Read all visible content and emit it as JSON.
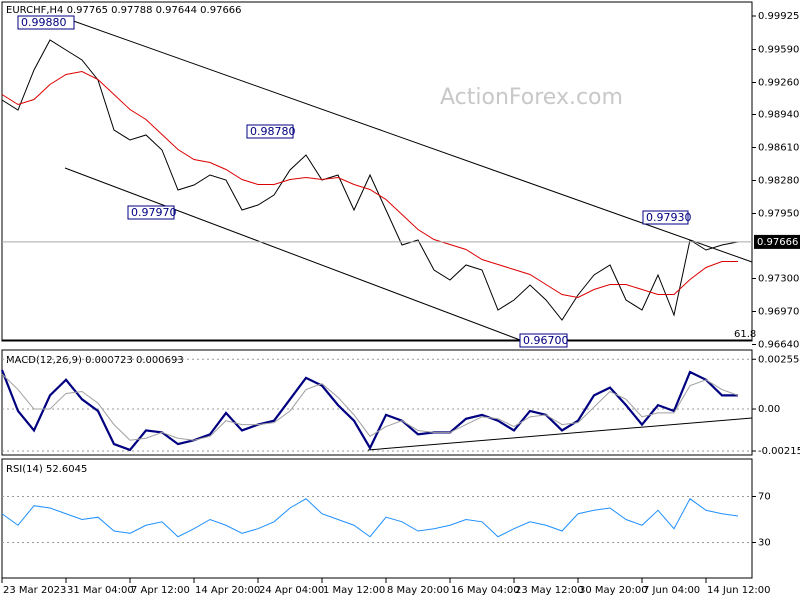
{
  "chart_data": [
    {
      "type": "line",
      "title": "EURCHF,H4 0.97765 0.97788 0.97644 0.97666",
      "watermark": "ActionForex.com",
      "categories": [
        "23 Mar 2023",
        null,
        null,
        null,
        "31 Mar 04:00",
        null,
        null,
        null,
        "7 Apr 12:00",
        null,
        null,
        null,
        "14 Apr 20:00",
        null,
        null,
        null,
        "24 Apr 04:00",
        null,
        null,
        null,
        "1 May 12:00",
        null,
        null,
        null,
        "8 May 20:00",
        null,
        null,
        null,
        "16 May 04:00",
        null,
        null,
        null,
        "23 May 12:00",
        null,
        null,
        null,
        "30 May 20:00",
        null,
        null,
        null,
        "7 Jun 04:00",
        null,
        null,
        null,
        "14 Jun 12:00",
        null,
        null
      ],
      "series": [
        {
          "color": "#000000",
          "values": [
            0.99085,
            0.98985,
            0.99385,
            0.99685,
            0.99585,
            0.99485,
            0.99285,
            0.98785,
            0.98685,
            0.98735,
            0.98585,
            0.98185,
            0.98235,
            0.98335,
            0.98285,
            0.97985,
            0.98035,
            0.98135,
            0.98385,
            0.98535,
            0.98285,
            0.98335,
            0.97985,
            0.98335,
            0.97985,
            0.97635,
            0.97685,
            0.97385,
            0.97285,
            0.97435,
            0.97385,
            0.96985,
            0.97085,
            0.97235,
            0.97085,
            0.96885,
            0.97135,
            0.97335,
            0.97435,
            0.97085,
            0.96985,
            0.97335,
            0.96935,
            0.97685,
            0.97585,
            0.97635,
            0.97666
          ]
        },
        {
          "color": "#dd0000",
          "values": [
            0.9914,
            0.9904,
            0.9909,
            0.9924,
            0.9934,
            0.9937,
            0.9929,
            0.9914,
            0.9899,
            0.9889,
            0.9874,
            0.9859,
            0.9849,
            0.9846,
            0.9839,
            0.9829,
            0.9824,
            0.9824,
            0.9829,
            0.9831,
            0.9829,
            0.9831,
            0.9824,
            0.9819,
            0.9809,
            0.9794,
            0.9779,
            0.9769,
            0.9764,
            0.9759,
            0.9749,
            0.9744,
            0.9739,
            0.9734,
            0.9724,
            0.9714,
            0.9711,
            0.9719,
            0.9724,
            0.9724,
            0.9719,
            0.9714,
            0.9714,
            0.9729,
            0.9741,
            0.9747,
            0.9747
          ]
        }
      ],
      "ylim": [
        0.96675,
        1.00055
      ],
      "yticks": [
        0.99925,
        {
          "value": 0.9959,
          "label": "0.99590"
        },
        {
          "value": 0.9926,
          "label": "0.99260"
        },
        {
          "value": 0.9894,
          "label": "0.98940"
        },
        {
          "value": 0.9861,
          "label": "0.98610"
        },
        {
          "value": 0.9828,
          "label": "0.98280"
        },
        {
          "value": 0.9795,
          "label": "0.97950"
        },
        {
          "value": 0.973,
          "label": "0.97300"
        },
        {
          "value": 0.9697,
          "label": "0.96970"
        },
        {
          "value": 0.9664,
          "label": "0.96640"
        }
      ],
      "current_price": 0.97666,
      "annotations": [
        "0.99880",
        "0.98780",
        "0.97970",
        "0.96700",
        "0.97930",
        "61.8"
      ]
    },
    {
      "type": "line",
      "title": "MACD(12,26,9) 0.000723 0.000693",
      "series": [
        {
          "color": "#000080",
          "values": [
            0.002,
            -0.0001,
            -0.0011,
            0.0007,
            0.0015,
            0.0005,
            -0.0001,
            -0.0018,
            -0.0021,
            -0.0011,
            -0.0012,
            -0.0018,
            -0.0016,
            -0.0013,
            -0.0002,
            -0.0011,
            -0.0008,
            -0.0006,
            0.0005,
            0.0016,
            0.0012,
            0.0002,
            -0.0006,
            -0.002,
            -0.0003,
            -0.0006,
            -0.0013,
            -0.0012,
            -0.0012,
            -0.0005,
            -0.0003,
            -0.0006,
            -0.0011,
            -0.0001,
            -0.0003,
            -0.0011,
            -0.0006,
            0.0007,
            0.0011,
            0.0002,
            -0.0008,
            0.0002,
            -0.0001,
            0.0019,
            0.0015,
            0.0007,
            0.0007
          ]
        },
        {
          "color": "#a0a0a0",
          "values": [
            0.0018,
            0.001,
            0,
            0,
            0.0008,
            0.0009,
            0.0003,
            -0.0008,
            -0.0016,
            -0.0015,
            -0.0012,
            -0.0015,
            -0.0016,
            -0.0014,
            -0.0006,
            -0.0008,
            -0.0008,
            -0.0007,
            -0.0001,
            0.001,
            0.0013,
            0.0006,
            -0.0003,
            -0.0014,
            -0.0009,
            -0.0006,
            -0.0011,
            -0.0012,
            -0.0012,
            -0.0008,
            -0.0004,
            -0.0005,
            -0.0009,
            -0.0004,
            -0.0003,
            -0.0008,
            -0.0007,
            0.0001,
            0.0009,
            0.0005,
            -0.0004,
            -0.0002,
            -0.0002,
            0.0012,
            0.0015,
            0.001,
            0.0007
          ]
        }
      ],
      "ylim": [
        -0.00236,
        0.00303
      ],
      "yticks": [
        0.002554,
        {
          "value": 0,
          "label": "0.00"
        },
        -0.002154
      ]
    },
    {
      "type": "line",
      "title": "RSI(14) 52.6045",
      "series": [
        {
          "color": "#1e90ff",
          "values": [
            55,
            45,
            62,
            60,
            55,
            50,
            52,
            40,
            38,
            45,
            48,
            35,
            42,
            50,
            45,
            38,
            42,
            48,
            60,
            68,
            55,
            50,
            45,
            35,
            52,
            48,
            40,
            42,
            45,
            50,
            48,
            35,
            42,
            48,
            45,
            40,
            55,
            58,
            60,
            50,
            45,
            58,
            42,
            68,
            58,
            55,
            53
          ]
        }
      ],
      "ylim": [
        0,
        100
      ],
      "yticks": [
        70,
        30
      ]
    }
  ]
}
